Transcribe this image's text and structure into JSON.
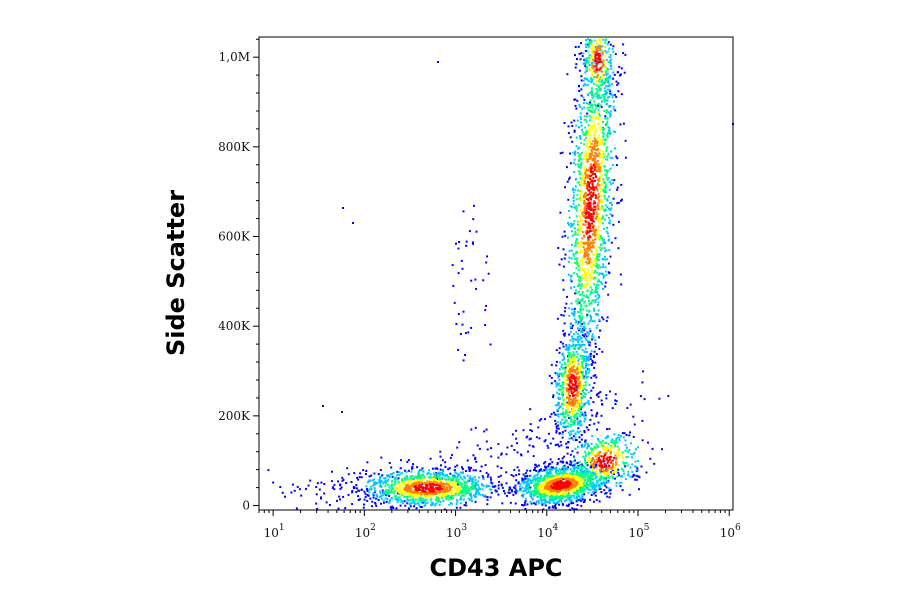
{
  "chart_data": {
    "type": "scatter",
    "title": "",
    "xlabel": "CD43 APC",
    "ylabel": "Side Scatter",
    "x_scale": "log",
    "xlim": [
      7,
      1100000
    ],
    "ylim": [
      -10000,
      1045000
    ],
    "x_ticks": [
      {
        "value": 10,
        "base": "10",
        "exp": "1"
      },
      {
        "value": 100,
        "base": "10",
        "exp": "2"
      },
      {
        "value": 1000,
        "base": "10",
        "exp": "3"
      },
      {
        "value": 10000,
        "base": "10",
        "exp": "4"
      },
      {
        "value": 100000,
        "base": "10",
        "exp": "5"
      },
      {
        "value": 1000000,
        "base": "10",
        "exp": "6"
      }
    ],
    "y_ticks": [
      {
        "value": 0,
        "label": "0"
      },
      {
        "value": 200000,
        "label": "200K"
      },
      {
        "value": 400000,
        "label": "400K"
      },
      {
        "value": 600000,
        "label": "600K"
      },
      {
        "value": 800000,
        "label": "800K"
      },
      {
        "value": 1000000,
        "label": "1,0M"
      }
    ],
    "grid": false,
    "colormap": [
      "#0000ff",
      "#00c8ff",
      "#00ff80",
      "#ffff00",
      "#ff8000",
      "#ff0000"
    ],
    "populations": [
      {
        "x_center": 550,
        "y_center": 40000,
        "density": "high"
      },
      {
        "x_center": 18000,
        "y_center": 55000,
        "density": "very high"
      },
      {
        "x_center": 25000,
        "y_center": 250000,
        "density": "medium"
      },
      {
        "x_center": 33000,
        "y_center": 650000,
        "density": "high"
      }
    ]
  }
}
